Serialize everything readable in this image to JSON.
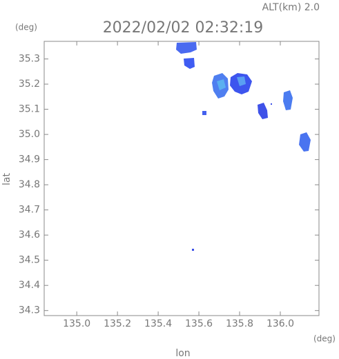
{
  "chart_data": {
    "type": "map",
    "altitude_label": "ALT(km) 2.0",
    "title": "2022/02/02 02:32:19",
    "y_unit": "(deg)",
    "x_unit": "(deg)",
    "ylabel": "lat",
    "xlabel": "lon",
    "xlim": [
      134.84,
      136.19
    ],
    "ylim": [
      34.28,
      35.37
    ],
    "xticks": [
      {
        "value": 135.0,
        "label": "135.0"
      },
      135.2,
      135.4,
      135.6,
      135.8,
      {
        "value": 136.0,
        "label": "136.0"
      }
    ],
    "yticks": [
      34.3,
      34.4,
      34.5,
      34.6,
      34.7,
      34.8,
      34.9,
      {
        "value": 35.0,
        "label": "35.0"
      },
      35.1,
      35.2,
      35.3
    ]
  }
}
